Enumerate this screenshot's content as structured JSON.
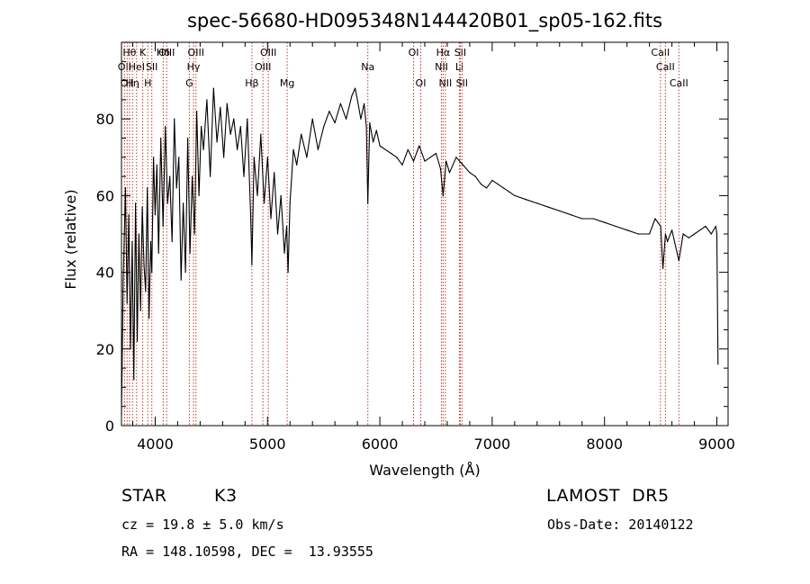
{
  "chart_data": {
    "type": "line",
    "title": "spec-56680-HD095348N144420B01_sp05-162.fits",
    "xlabel": "Wavelength (Å)",
    "ylabel": "Flux (relative)",
    "xlim": [
      3700,
      9100
    ],
    "ylim": [
      0,
      100
    ],
    "xticks": [
      4000,
      5000,
      6000,
      7000,
      8000,
      9000
    ],
    "yticks": [
      0,
      20,
      40,
      60,
      80
    ],
    "grid": false,
    "series": [
      {
        "name": "",
        "x": [
          3700,
          3715,
          3735,
          3750,
          3765,
          3780,
          3795,
          3810,
          3825,
          3840,
          3855,
          3870,
          3885,
          3900,
          3915,
          3930,
          3945,
          3960,
          3970,
          3985,
          4000,
          4015,
          4030,
          4050,
          4070,
          4090,
          4110,
          4130,
          4150,
          4170,
          4190,
          4210,
          4230,
          4250,
          4270,
          4290,
          4310,
          4330,
          4350,
          4370,
          4390,
          4410,
          4430,
          4460,
          4490,
          4520,
          4550,
          4580,
          4610,
          4640,
          4670,
          4700,
          4730,
          4760,
          4790,
          4820,
          4850,
          4861,
          4880,
          4910,
          4940,
          4970,
          5000,
          5030,
          5060,
          5090,
          5120,
          5150,
          5170,
          5183,
          5200,
          5230,
          5260,
          5300,
          5350,
          5400,
          5450,
          5500,
          5550,
          5600,
          5650,
          5700,
          5750,
          5780,
          5800,
          5830,
          5860,
          5880,
          5893,
          5910,
          5940,
          5970,
          6000,
          6050,
          6100,
          6150,
          6200,
          6250,
          6300,
          6350,
          6400,
          6450,
          6500,
          6540,
          6563,
          6590,
          6620,
          6680,
          6740,
          6800,
          6850,
          6900,
          6950,
          7000,
          7050,
          7100,
          7150,
          7200,
          7300,
          7400,
          7500,
          7600,
          7700,
          7800,
          7900,
          8000,
          8100,
          8200,
          8300,
          8400,
          8450,
          8500,
          8520,
          8542,
          8560,
          8600,
          8662,
          8700,
          8750,
          8800,
          8850,
          8900,
          8950,
          8990,
          9000,
          9010
        ],
        "y": [
          3,
          38,
          62,
          32,
          55,
          20,
          48,
          12,
          58,
          22,
          50,
          30,
          57,
          42,
          35,
          62,
          28,
          48,
          40,
          70,
          55,
          68,
          45,
          75,
          52,
          78,
          58,
          65,
          48,
          80,
          62,
          70,
          38,
          58,
          40,
          75,
          45,
          65,
          50,
          82,
          60,
          78,
          72,
          85,
          65,
          88,
          74,
          83,
          70,
          84,
          76,
          80,
          72,
          78,
          65,
          80,
          55,
          42,
          70,
          60,
          76,
          58,
          70,
          54,
          66,
          50,
          60,
          45,
          52,
          40,
          58,
          72,
          68,
          76,
          70,
          80,
          72,
          78,
          82,
          79,
          84,
          80,
          86,
          88,
          85,
          80,
          84,
          78,
          58,
          79,
          74,
          77,
          73,
          72,
          71,
          70,
          68,
          72,
          69,
          73,
          69,
          70,
          71,
          67,
          60,
          69,
          66,
          70,
          68,
          66,
          65,
          63,
          62,
          64,
          63,
          62,
          61,
          60,
          59,
          58,
          57,
          56,
          55,
          54,
          54,
          53,
          52,
          51,
          50,
          50,
          54,
          52,
          41,
          50,
          48,
          51,
          43,
          50,
          49,
          50,
          51,
          52,
          50,
          52,
          50,
          16
        ]
      }
    ],
    "lines": [
      {
        "wl": 3727,
        "label": "OII",
        "row": 2
      },
      {
        "wl": 3750,
        "label": "OII",
        "row": 3
      },
      {
        "wl": 3771,
        "label": "Hθ",
        "row": 1
      },
      {
        "wl": 3798,
        "label": "Hη",
        "row": 3
      },
      {
        "wl": 3835,
        "label": "HeI",
        "row": 2
      },
      {
        "wl": 3889,
        "label": "K",
        "row": 1
      },
      {
        "wl": 3934,
        "label": "H",
        "row": 3
      },
      {
        "wl": 3970,
        "label": "SII",
        "row": 2
      },
      {
        "wl": 4072,
        "label": "Hδ",
        "row": 1
      },
      {
        "wl": 4102,
        "label": "OIII",
        "row": 1
      },
      {
        "wl": 4304,
        "label": "G",
        "row": 3
      },
      {
        "wl": 4341,
        "label": "Hγ",
        "row": 2
      },
      {
        "wl": 4363,
        "label": "OIII",
        "row": 1
      },
      {
        "wl": 4861,
        "label": "Hβ",
        "row": 3
      },
      {
        "wl": 4959,
        "label": "OIII",
        "row": 2
      },
      {
        "wl": 5007,
        "label": "OIII",
        "row": 1
      },
      {
        "wl": 5175,
        "label": "Mg",
        "row": 3
      },
      {
        "wl": 5893,
        "label": "Na",
        "row": 2
      },
      {
        "wl": 6300,
        "label": "OI",
        "row": 1
      },
      {
        "wl": 6364,
        "label": "OI",
        "row": 3
      },
      {
        "wl": 6548,
        "label": "NII",
        "row": 2
      },
      {
        "wl": 6563,
        "label": "Hα",
        "row": 1
      },
      {
        "wl": 6583,
        "label": "NII",
        "row": 3
      },
      {
        "wl": 6708,
        "label": "Li",
        "row": 2
      },
      {
        "wl": 6716,
        "label": "SII",
        "row": 1
      },
      {
        "wl": 6731,
        "label": "SII",
        "row": 3
      },
      {
        "wl": 8498,
        "label": "CaII",
        "row": 1
      },
      {
        "wl": 8542,
        "label": "CaII",
        "row": 2
      },
      {
        "wl": 8662,
        "label": "CaII",
        "row": 3
      }
    ],
    "line_color": "#c0392b",
    "trace_color": "#000000"
  },
  "info": {
    "object_class": "STAR",
    "subclass": "K3",
    "survey": "LAMOST  DR5",
    "cz": "cz = 19.8 ± 5.0 km/s",
    "obs_date": "Obs-Date: 20140122",
    "coords": "RA = 148.10598, DEC =  13.93555"
  }
}
